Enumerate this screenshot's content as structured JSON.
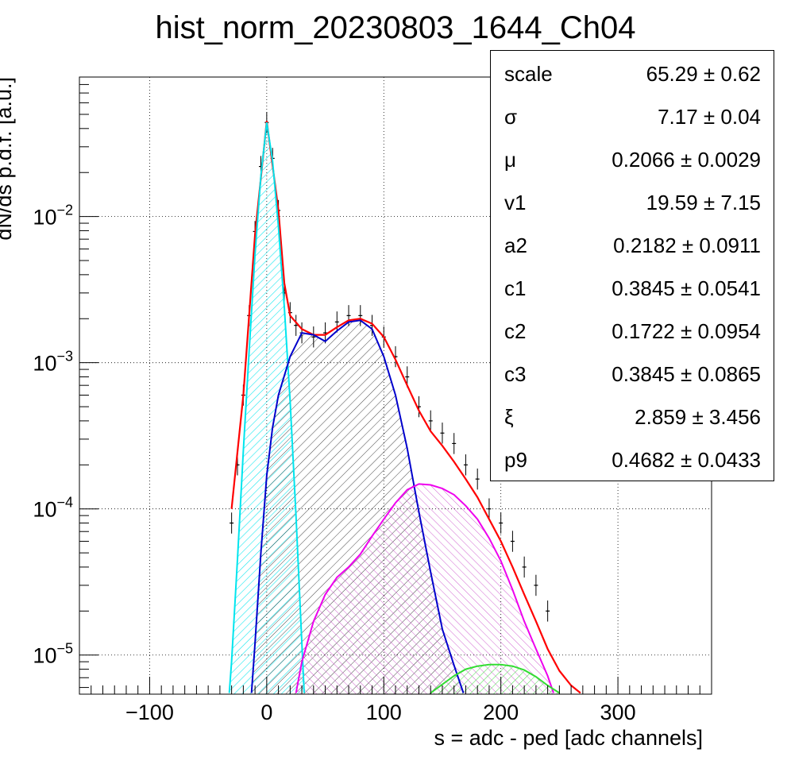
{
  "chart_data": {
    "type": "histogram",
    "title": "hist_norm_20230803_1644_Ch04",
    "xlabel": "s = adc - ped [adc channels]",
    "ylabel": "dN/ds p.d.f. [a.u.]",
    "xlim": [
      -160,
      380
    ],
    "ylim": [
      5.4e-06,
      0.09
    ],
    "yscale": "log",
    "grid": true,
    "x_ticks": [
      -100,
      0,
      100,
      200,
      300
    ],
    "x_tick_labels": [
      "−100",
      "0",
      "100",
      "200",
      "300"
    ],
    "y_ticks": [
      1e-05,
      0.0001,
      0.001,
      0.01
    ],
    "y_tick_labels": [
      {
        "base": "10",
        "exp": "−5"
      },
      {
        "base": "10",
        "exp": "−4"
      },
      {
        "base": "10",
        "exp": "−3"
      },
      {
        "base": "10",
        "exp": "−2"
      }
    ],
    "histogram": {
      "color": "#000000",
      "x": [
        -30,
        -25,
        -20,
        -15,
        -10,
        -5,
        0,
        5,
        10,
        15,
        20,
        25,
        30,
        40,
        50,
        60,
        70,
        80,
        90,
        100,
        110,
        120,
        130,
        140,
        150,
        160,
        170,
        180,
        190,
        200,
        210,
        220,
        230,
        240
      ],
      "y": [
        8e-05,
        0.0002,
        0.0006,
        0.0021,
        0.0079,
        0.022,
        0.044,
        0.025,
        0.011,
        0.003,
        0.0022,
        0.0018,
        0.0016,
        0.0015,
        0.0016,
        0.0019,
        0.0021,
        0.0021,
        0.0018,
        0.0015,
        0.0011,
        0.0008,
        0.0005,
        0.0004,
        0.00033,
        0.00028,
        0.0002,
        0.00016,
        0.0001,
        8e-05,
        6e-05,
        4e-05,
        3e-05,
        2e-05
      ]
    },
    "series": [
      {
        "color": "#ff0000",
        "hatched": false,
        "x": [
          -30,
          -20,
          -10,
          0,
          10,
          15,
          20,
          30,
          40,
          50,
          60,
          70,
          80,
          90,
          100,
          110,
          120,
          130,
          140,
          150,
          160,
          170,
          180,
          190,
          200,
          210,
          220,
          230,
          240,
          250,
          260,
          268
        ],
        "y": [
          0.0001,
          0.0006,
          0.0075,
          0.045,
          0.011,
          0.0035,
          0.0021,
          0.0017,
          0.00155,
          0.00155,
          0.00175,
          0.00195,
          0.002,
          0.00185,
          0.0015,
          0.00105,
          0.0007,
          0.00047,
          0.00034,
          0.00027,
          0.00021,
          0.00016,
          0.00012,
          8.5e-05,
          6e-05,
          4e-05,
          2.6e-05,
          1.7e-05,
          1.1e-05,
          7.8e-06,
          6.2e-06,
          5.5e-06
        ]
      },
      {
        "color": "#00e5ee",
        "hatched": true,
        "x": [
          -32,
          -30,
          -25,
          -20,
          -15,
          -10,
          -5,
          0,
          5,
          10,
          15,
          20,
          25,
          30,
          32
        ],
        "y": [
          5.5e-06,
          9e-06,
          4.5e-05,
          0.00025,
          0.0012,
          0.0055,
          0.019,
          0.044,
          0.024,
          0.0085,
          0.0024,
          0.00055,
          9e-05,
          1.2e-05,
          5.5e-06
        ]
      },
      {
        "color": "#0000cc",
        "hatched": true,
        "x": [
          -13,
          -10,
          -5,
          0,
          5,
          10,
          20,
          30,
          40,
          50,
          60,
          70,
          80,
          90,
          100,
          110,
          120,
          130,
          140,
          150,
          160,
          168
        ],
        "y": [
          5.5e-06,
          1.2e-05,
          5e-05,
          0.00017,
          0.00036,
          0.0006,
          0.0011,
          0.0016,
          0.00155,
          0.0014,
          0.00165,
          0.0019,
          0.00195,
          0.0017,
          0.0011,
          0.0006,
          0.00026,
          9.5e-05,
          3.7e-05,
          1.5e-05,
          8.5e-06,
          5.5e-06
        ]
      },
      {
        "color": "#ee00ee",
        "hatched": true,
        "x": [
          25,
          30,
          40,
          50,
          60,
          70,
          80,
          90,
          100,
          110,
          120,
          130,
          140,
          150,
          160,
          170,
          180,
          190,
          200,
          210,
          220,
          230,
          240,
          245
        ],
        "y": [
          5.5e-06,
          9e-06,
          1.7e-05,
          2.6e-05,
          3.4e-05,
          4e-05,
          4.9e-05,
          6.5e-05,
          8.5e-05,
          0.00011,
          0.000135,
          0.000148,
          0.000146,
          0.000138,
          0.000125,
          0.000105,
          8.5e-05,
          6.3e-05,
          4.4e-05,
          2.8e-05,
          1.7e-05,
          1.1e-05,
          7.2e-06,
          5.5e-06
        ]
      },
      {
        "color": "#33dd33",
        "hatched": true,
        "x": [
          140,
          150,
          160,
          170,
          180,
          190,
          200,
          210,
          220,
          230,
          240,
          250
        ],
        "y": [
          5.5e-06,
          6.3e-06,
          7.2e-06,
          8e-06,
          8.4e-06,
          8.6e-06,
          8.6e-06,
          8.4e-06,
          7.9e-06,
          7.1e-06,
          6.2e-06,
          5.5e-06
        ]
      }
    ]
  },
  "stats": [
    {
      "name": "scale",
      "value": "65.29 ± 0.62"
    },
    {
      "name": "σ",
      "value": "7.17 ± 0.04"
    },
    {
      "name": "μ",
      "value": "0.2066 ± 0.0029"
    },
    {
      "name": "v1",
      "value": "19.59 ± 7.15"
    },
    {
      "name": "a2",
      "value": "0.2182 ± 0.0911"
    },
    {
      "name": "c1",
      "value": "0.3845 ± 0.0541"
    },
    {
      "name": "c2",
      "value": "0.1722 ± 0.0954"
    },
    {
      "name": "c3",
      "value": "0.3845 ± 0.0865"
    },
    {
      "name": "ξ",
      "value": "2.859 ± 3.456"
    },
    {
      "name": "p9",
      "value": "0.4682 ± 0.0433"
    }
  ]
}
